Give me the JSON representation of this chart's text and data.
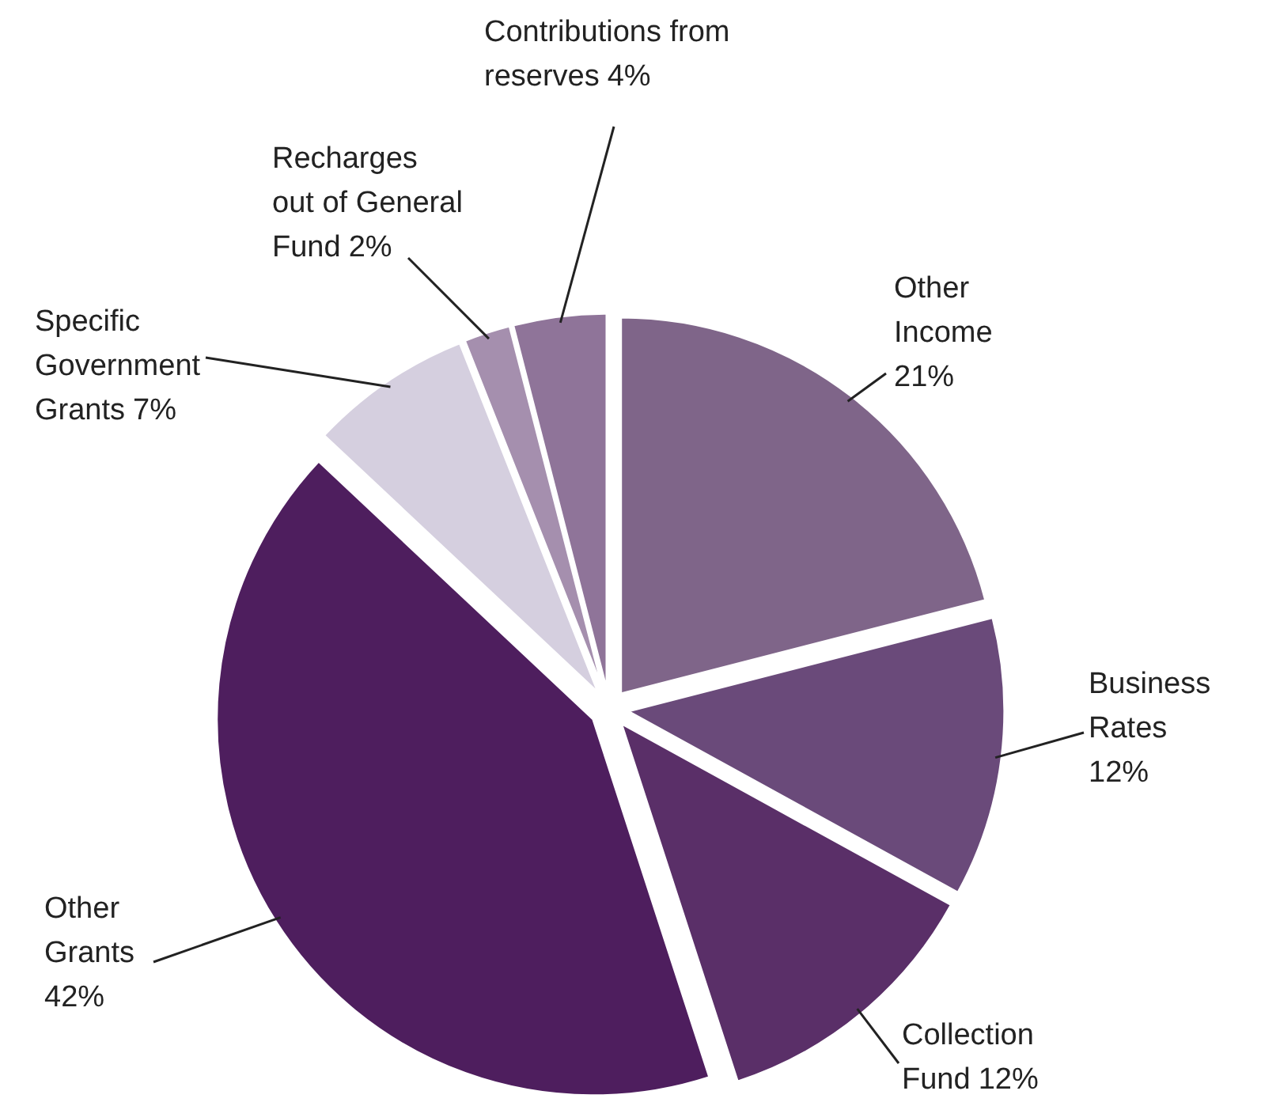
{
  "chart_data": {
    "type": "pie",
    "categories": [
      "Other Income",
      "Business Rates",
      "Collection Fund",
      "Other Grants",
      "Specific Government Grants",
      "Recharges out of General Fund",
      "Contributions from reserves"
    ],
    "values": [
      21,
      12,
      12,
      42,
      7,
      2,
      4
    ],
    "colors": [
      "#7f6589",
      "#6a4a7a",
      "#5a2f68",
      "#4e1e5e",
      "#d5cfdf",
      "#a58fae",
      "#8f7499"
    ],
    "value_labels": [
      "21%",
      "12%",
      "12%",
      "42%",
      "7%",
      "2%",
      "4%"
    ]
  }
}
